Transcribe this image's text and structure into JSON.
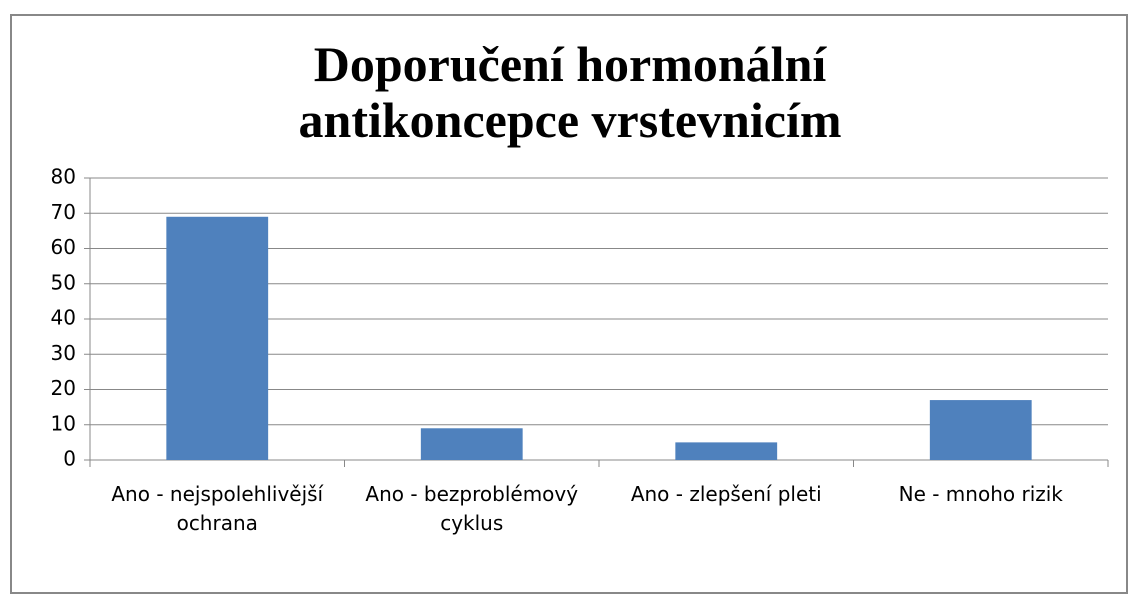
{
  "chart_data": {
    "type": "bar",
    "title": "Doporučení hormonální antikoncepce vrstevnicím",
    "categories": [
      "Ano - nejspolehlivější ochrana",
      "Ano - bezproblémový cyklus",
      "Ano - zlepšení pleti",
      "Ne - mnoho rizik"
    ],
    "values": [
      69,
      9,
      5,
      17
    ],
    "color": "#4f81bd",
    "ylim": [
      0,
      80
    ],
    "yticks": [
      0,
      10,
      20,
      30,
      40,
      50,
      60,
      70,
      80
    ],
    "grid": true
  }
}
